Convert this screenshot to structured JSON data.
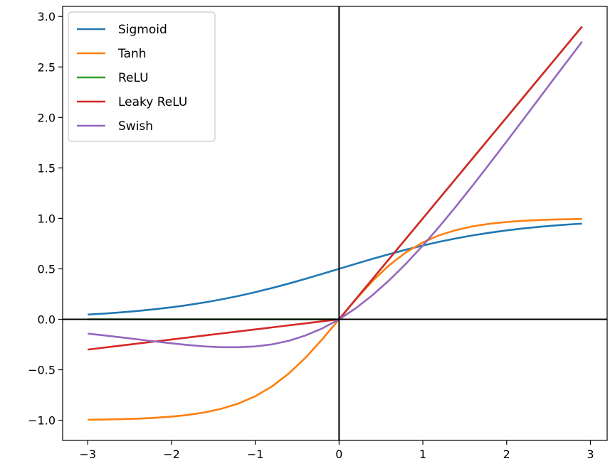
{
  "chart_data": {
    "type": "line",
    "title": "",
    "xlabel": "",
    "ylabel": "",
    "xlim": [
      -3.3,
      3.2
    ],
    "ylim": [
      -1.2,
      3.1
    ],
    "x_ticks": [
      -3,
      -2,
      -1,
      0,
      1,
      2,
      3
    ],
    "x_tick_labels": [
      "−3",
      "−2",
      "−1",
      "0",
      "1",
      "2",
      "3"
    ],
    "y_ticks": [
      -1.0,
      -0.5,
      0.0,
      0.5,
      1.0,
      1.5,
      2.0,
      2.5,
      3.0
    ],
    "y_tick_labels": [
      "−1.0",
      "−0.5",
      "0.0",
      "0.5",
      "1.0",
      "1.5",
      "2.0",
      "2.5",
      "3.0"
    ],
    "grid": false,
    "legend_position": "top-left",
    "reference_lines": {
      "x": 0,
      "y": 0
    },
    "x": [
      -3.0,
      -2.8,
      -2.6,
      -2.4,
      -2.2,
      -2.0,
      -1.8,
      -1.6,
      -1.4,
      -1.2,
      -1.0,
      -0.8,
      -0.6,
      -0.4,
      -0.2,
      0.0,
      0.2,
      0.4,
      0.6,
      0.8,
      1.0,
      1.2,
      1.4,
      1.6,
      1.8,
      2.0,
      2.2,
      2.4,
      2.6,
      2.8,
      2.9
    ],
    "series": [
      {
        "name": "Sigmoid",
        "color": "#1f77b4",
        "values": [
          0.047,
          0.057,
          0.069,
          0.083,
          0.1,
          0.119,
          0.142,
          0.168,
          0.198,
          0.231,
          0.269,
          0.31,
          0.354,
          0.401,
          0.45,
          0.5,
          0.55,
          0.599,
          0.646,
          0.69,
          0.731,
          0.769,
          0.802,
          0.832,
          0.858,
          0.881,
          0.9,
          0.917,
          0.931,
          0.943,
          0.948
        ]
      },
      {
        "name": "Tanh",
        "color": "#ff7f0e",
        "values": [
          -0.995,
          -0.993,
          -0.989,
          -0.984,
          -0.976,
          -0.964,
          -0.947,
          -0.922,
          -0.885,
          -0.834,
          -0.762,
          -0.664,
          -0.537,
          -0.38,
          -0.197,
          0.0,
          0.197,
          0.38,
          0.537,
          0.664,
          0.762,
          0.834,
          0.885,
          0.922,
          0.947,
          0.964,
          0.976,
          0.984,
          0.989,
          0.993,
          0.994
        ]
      },
      {
        "name": "ReLU",
        "color": "#2ca02c",
        "values": [
          0.0,
          0.0,
          0.0,
          0.0,
          0.0,
          0.0,
          0.0,
          0.0,
          0.0,
          0.0,
          0.0,
          0.0,
          0.0,
          0.0,
          0.0,
          0.0,
          0.2,
          0.4,
          0.6,
          0.8,
          1.0,
          1.2,
          1.4,
          1.6,
          1.8,
          2.0,
          2.2,
          2.4,
          2.6,
          2.8,
          2.9
        ]
      },
      {
        "name": "Leaky ReLU",
        "color": "#d62728",
        "values": [
          -0.3,
          -0.28,
          -0.26,
          -0.24,
          -0.22,
          -0.2,
          -0.18,
          -0.16,
          -0.14,
          -0.12,
          -0.1,
          -0.08,
          -0.06,
          -0.04,
          -0.02,
          0.0,
          0.2,
          0.4,
          0.6,
          0.8,
          1.0,
          1.2,
          1.4,
          1.6,
          1.8,
          2.0,
          2.2,
          2.4,
          2.6,
          2.8,
          2.9
        ]
      },
      {
        "name": "Swish",
        "color": "#9467bd",
        "values": [
          -0.142,
          -0.16,
          -0.179,
          -0.199,
          -0.219,
          -0.238,
          -0.255,
          -0.269,
          -0.277,
          -0.277,
          -0.269,
          -0.248,
          -0.213,
          -0.16,
          -0.09,
          0.0,
          0.11,
          0.24,
          0.388,
          0.552,
          0.731,
          0.922,
          1.123,
          1.331,
          1.545,
          1.762,
          1.981,
          2.202,
          2.422,
          2.64,
          2.75
        ]
      }
    ]
  }
}
